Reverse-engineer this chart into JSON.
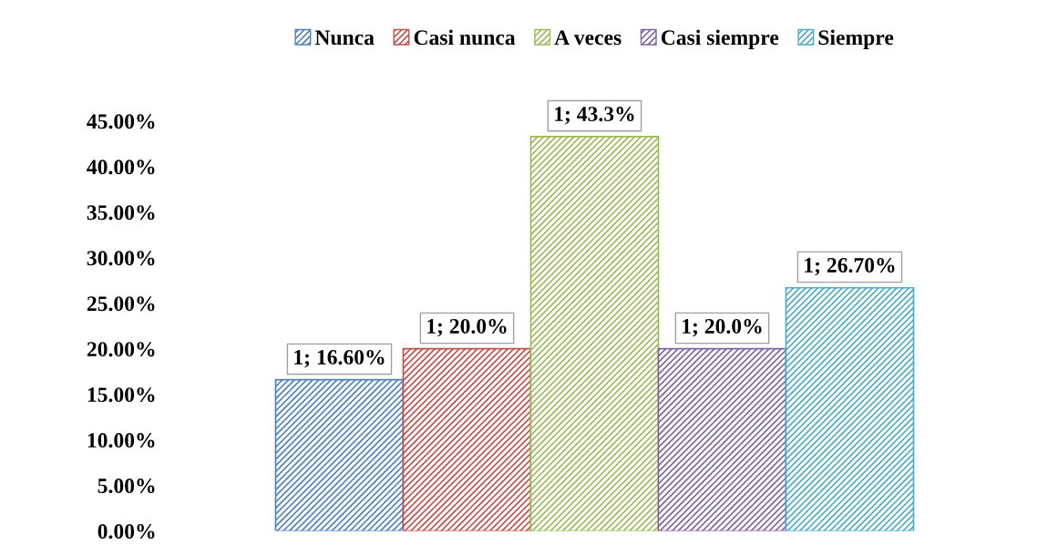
{
  "chart_data": {
    "type": "bar",
    "categories": [
      null
    ],
    "series": [
      {
        "name": "Nunca",
        "color": "#4f81bd",
        "values": [
          16.6
        ],
        "value_labels": [
          "1; 16.60%"
        ]
      },
      {
        "name": "Casi nunca",
        "color": "#c0504d",
        "values": [
          20.0
        ],
        "value_labels": [
          "1; 20.0%"
        ]
      },
      {
        "name": "A veces",
        "color": "#9bbb59",
        "values": [
          43.3
        ],
        "value_labels": [
          "1; 43.3%"
        ]
      },
      {
        "name": "Casi siempre",
        "color": "#8064a2",
        "values": [
          20.0
        ],
        "value_labels": [
          "1; 20.0%"
        ]
      },
      {
        "name": "Siempre",
        "color": "#4bacc6",
        "values": [
          26.7
        ],
        "value_labels": [
          "1; 26.70%"
        ]
      }
    ],
    "ylim": [
      0,
      47
    ],
    "yticks": [
      {
        "value": 0,
        "label": "0.00%"
      },
      {
        "value": 5,
        "label": "5.00%"
      },
      {
        "value": 10,
        "label": "10.00%"
      },
      {
        "value": 15,
        "label": "15.00%"
      },
      {
        "value": 20,
        "label": "20.00%"
      },
      {
        "value": 25,
        "label": "25.00%"
      },
      {
        "value": 30,
        "label": "30.00%"
      },
      {
        "value": 35,
        "label": "35.00%"
      },
      {
        "value": 40,
        "label": "40.00%"
      },
      {
        "value": 45,
        "label": "45.00%"
      }
    ],
    "grid": false,
    "legend": "top"
  }
}
